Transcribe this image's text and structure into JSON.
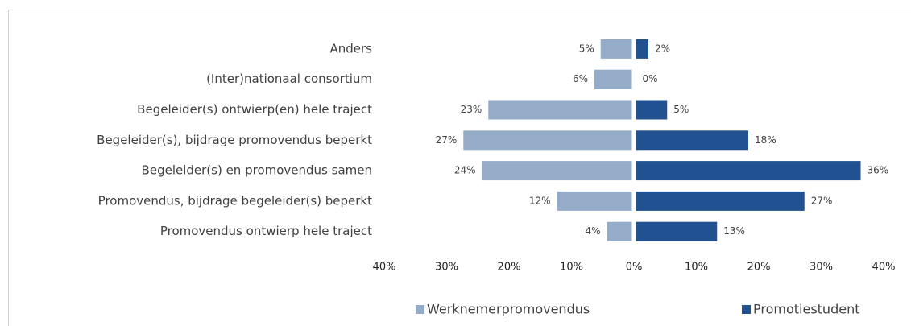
{
  "chart_data": {
    "type": "diverging-bar",
    "categories": [
      "Anders",
      "(Inter)nationaal consortium",
      "Begeleider(s) ontwierp(en) hele traject",
      "Begeleider(s), bijdrage promovendus beperkt",
      "Begeleider(s) en promovendus samen",
      "Promovendus, bijdrage begeleider(s) beperkt",
      "Promovendus ontwierp hele traject"
    ],
    "series": [
      {
        "name": "Werknemerpromovendus",
        "color": "#95acc9",
        "side": "left",
        "values": [
          5,
          6,
          23,
          27,
          24,
          12,
          4
        ],
        "value_labels": [
          "5%",
          "6%",
          "23%",
          "27%",
          "24%",
          "12%",
          "4%"
        ]
      },
      {
        "name": "Promotiestudent",
        "color": "#215190",
        "side": "right",
        "values": [
          2,
          0,
          5,
          18,
          36,
          27,
          13
        ],
        "value_labels": [
          "2%",
          "0%",
          "5%",
          "18%",
          "36%",
          "27%",
          "13%"
        ]
      }
    ],
    "xlim": [
      -40,
      40
    ],
    "xticks": [
      {
        "value": -40,
        "label": "40%"
      },
      {
        "value": -30,
        "label": "30%"
      },
      {
        "value": -20,
        "label": "20%"
      },
      {
        "value": -10,
        "label": "10%"
      },
      {
        "value": 0,
        "label": "0%"
      },
      {
        "value": 10,
        "label": "10%"
      },
      {
        "value": 20,
        "label": "20%"
      },
      {
        "value": 30,
        "label": "30%"
      },
      {
        "value": 40,
        "label": "40%"
      }
    ],
    "legend": "bottom"
  }
}
